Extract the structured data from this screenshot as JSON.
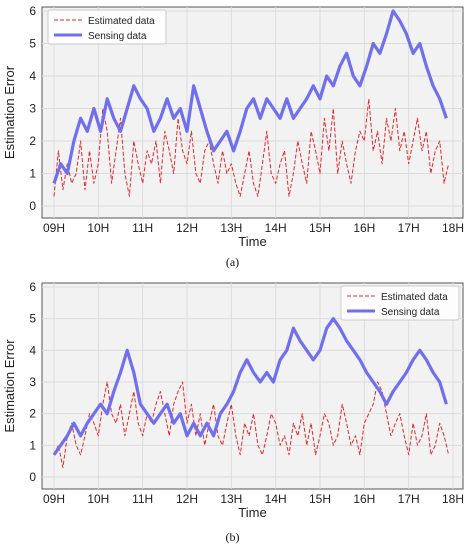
{
  "chart_data": [
    {
      "type": "line",
      "caption": "(a)",
      "xlabel": "Time",
      "ylabel": "Estimation Error",
      "categories": [
        "09H",
        "10H",
        "11H",
        "12H",
        "13H",
        "14H",
        "15H",
        "16H",
        "17H",
        "18H"
      ],
      "xlim": [
        9,
        18
      ],
      "ylim": [
        0,
        6
      ],
      "yticks": [
        0,
        1,
        2,
        3,
        4,
        5,
        6
      ],
      "grid": true,
      "legend": "top-left",
      "series": [
        {
          "name": "Estimated data",
          "style": "dashed",
          "color": "#e8262a",
          "x": [
            9.0,
            9.1,
            9.2,
            9.3,
            9.4,
            9.5,
            9.6,
            9.7,
            9.8,
            9.9,
            10.0,
            10.1,
            10.2,
            10.3,
            10.4,
            10.5,
            10.6,
            10.7,
            10.8,
            10.9,
            11.0,
            11.1,
            11.2,
            11.3,
            11.4,
            11.5,
            11.6,
            11.7,
            11.8,
            11.9,
            12.0,
            12.1,
            12.2,
            12.3,
            12.4,
            12.5,
            12.6,
            12.7,
            12.8,
            12.9,
            13.0,
            13.1,
            13.2,
            13.3,
            13.4,
            13.5,
            13.6,
            13.7,
            13.8,
            13.9,
            14.0,
            14.1,
            14.2,
            14.3,
            14.4,
            14.5,
            14.6,
            14.7,
            14.8,
            14.9,
            15.0,
            15.1,
            15.2,
            15.3,
            15.4,
            15.5,
            15.6,
            15.7,
            15.8,
            15.9,
            16.0,
            16.1,
            16.2,
            16.3,
            16.4,
            16.5,
            16.6,
            16.7,
            16.8,
            16.9,
            17.0,
            17.1,
            17.2,
            17.3,
            17.4,
            17.5,
            17.6,
            17.7,
            17.8,
            17.9
          ],
          "y": [
            0.3,
            1.7,
            0.5,
            1.3,
            0.7,
            1.0,
            2.0,
            0.5,
            1.7,
            0.7,
            1.3,
            3.0,
            2.3,
            0.7,
            1.7,
            2.7,
            1.0,
            0.3,
            2.0,
            1.3,
            0.7,
            1.7,
            1.3,
            2.0,
            0.7,
            2.3,
            1.7,
            1.0,
            2.7,
            1.7,
            1.3,
            2.3,
            1.0,
            0.7,
            1.7,
            2.0,
            1.3,
            0.7,
            1.7,
            1.0,
            1.3,
            0.7,
            0.3,
            1.0,
            1.7,
            0.7,
            0.3,
            1.3,
            2.3,
            1.0,
            0.7,
            1.3,
            1.7,
            0.3,
            1.0,
            2.0,
            1.3,
            0.7,
            2.3,
            1.7,
            1.0,
            2.7,
            1.7,
            3.0,
            1.0,
            2.0,
            1.3,
            0.7,
            1.7,
            2.3,
            2.0,
            3.3,
            1.7,
            2.3,
            1.3,
            2.7,
            2.0,
            3.0,
            1.7,
            2.3,
            1.3,
            2.0,
            2.7,
            1.7,
            2.3,
            1.0,
            1.7,
            2.0,
            0.7,
            1.3
          ]
        },
        {
          "name": "Sensing data",
          "style": "solid",
          "color": "#7070ee",
          "x": [
            9.0,
            9.15,
            9.3,
            9.45,
            9.6,
            9.75,
            9.9,
            10.05,
            10.2,
            10.35,
            10.5,
            10.65,
            10.8,
            10.95,
            11.1,
            11.25,
            11.4,
            11.55,
            11.7,
            11.85,
            12.0,
            12.15,
            12.3,
            12.45,
            12.6,
            12.75,
            12.9,
            13.05,
            13.2,
            13.35,
            13.5,
            13.65,
            13.8,
            13.95,
            14.1,
            14.25,
            14.4,
            14.55,
            14.7,
            14.85,
            15.0,
            15.15,
            15.3,
            15.45,
            15.6,
            15.75,
            15.9,
            16.05,
            16.2,
            16.35,
            16.5,
            16.65,
            16.8,
            16.95,
            17.1,
            17.25,
            17.4,
            17.55,
            17.7,
            17.85
          ],
          "y": [
            0.7,
            1.3,
            1.0,
            2.0,
            2.7,
            2.3,
            3.0,
            2.3,
            3.3,
            2.7,
            2.3,
            3.0,
            3.7,
            3.3,
            3.0,
            2.3,
            2.7,
            3.3,
            2.7,
            3.0,
            2.3,
            3.7,
            3.0,
            2.3,
            1.7,
            2.0,
            2.3,
            1.7,
            2.3,
            3.0,
            3.3,
            2.7,
            3.3,
            3.0,
            2.7,
            3.3,
            2.7,
            3.0,
            3.3,
            3.7,
            3.3,
            4.0,
            3.7,
            4.3,
            4.7,
            4.0,
            3.7,
            4.3,
            5.0,
            4.7,
            5.3,
            6.0,
            5.7,
            5.3,
            4.7,
            5.0,
            4.3,
            3.7,
            3.3,
            2.7
          ]
        }
      ]
    },
    {
      "type": "line",
      "caption": "(b)",
      "xlabel": "Time",
      "ylabel": "Estimation Error",
      "categories": [
        "09H",
        "10H",
        "11H",
        "12H",
        "13H",
        "14H",
        "15H",
        "16H",
        "17H",
        "18H"
      ],
      "xlim": [
        9,
        18
      ],
      "ylim": [
        0,
        6
      ],
      "yticks": [
        0,
        1,
        2,
        3,
        4,
        5,
        6
      ],
      "grid": true,
      "legend": "top-right",
      "series": [
        {
          "name": "Estimated data",
          "style": "dashed",
          "color": "#e8262a",
          "x": [
            9.0,
            9.1,
            9.2,
            9.3,
            9.4,
            9.5,
            9.6,
            9.7,
            9.8,
            9.9,
            10.0,
            10.1,
            10.2,
            10.3,
            10.4,
            10.5,
            10.6,
            10.7,
            10.8,
            10.9,
            11.0,
            11.1,
            11.2,
            11.3,
            11.4,
            11.5,
            11.6,
            11.7,
            11.8,
            11.9,
            12.0,
            12.1,
            12.2,
            12.3,
            12.4,
            12.5,
            12.6,
            12.7,
            12.8,
            12.9,
            13.0,
            13.1,
            13.2,
            13.3,
            13.4,
            13.5,
            13.6,
            13.7,
            13.8,
            13.9,
            14.0,
            14.1,
            14.2,
            14.3,
            14.4,
            14.5,
            14.6,
            14.7,
            14.8,
            14.9,
            15.0,
            15.1,
            15.2,
            15.3,
            15.4,
            15.5,
            15.6,
            15.7,
            15.8,
            15.9,
            16.0,
            16.1,
            16.2,
            16.3,
            16.4,
            16.5,
            16.6,
            16.7,
            16.8,
            16.9,
            17.0,
            17.1,
            17.2,
            17.3,
            17.4,
            17.5,
            17.6,
            17.7,
            17.8,
            17.9
          ],
          "y": [
            0.7,
            1.0,
            0.3,
            1.3,
            1.7,
            1.0,
            0.7,
            1.3,
            2.0,
            1.7,
            1.3,
            2.3,
            3.0,
            2.0,
            1.7,
            2.3,
            1.3,
            2.0,
            2.7,
            1.7,
            1.3,
            2.0,
            1.7,
            2.3,
            2.7,
            2.0,
            1.3,
            2.3,
            2.7,
            3.0,
            1.7,
            2.3,
            1.3,
            2.0,
            1.0,
            1.7,
            2.3,
            1.3,
            1.0,
            1.7,
            2.3,
            1.3,
            0.7,
            1.7,
            1.3,
            2.0,
            1.0,
            0.7,
            1.3,
            2.0,
            1.7,
            1.0,
            1.3,
            0.7,
            1.7,
            1.3,
            2.0,
            1.0,
            1.7,
            0.7,
            1.3,
            2.0,
            1.7,
            1.0,
            1.3,
            2.3,
            1.7,
            1.0,
            1.3,
            0.7,
            1.7,
            2.0,
            2.3,
            3.0,
            2.7,
            2.0,
            1.3,
            1.7,
            2.0,
            1.3,
            0.7,
            1.7,
            1.0,
            1.3,
            2.0,
            0.7,
            1.0,
            1.7,
            1.3,
            0.7
          ]
        },
        {
          "name": "Sensing data",
          "style": "solid",
          "color": "#7070ee",
          "x": [
            9.0,
            9.15,
            9.3,
            9.45,
            9.6,
            9.75,
            9.9,
            10.05,
            10.2,
            10.35,
            10.5,
            10.65,
            10.8,
            10.95,
            11.1,
            11.25,
            11.4,
            11.55,
            11.7,
            11.85,
            12.0,
            12.15,
            12.3,
            12.45,
            12.6,
            12.75,
            12.9,
            13.05,
            13.2,
            13.35,
            13.5,
            13.65,
            13.8,
            13.95,
            14.1,
            14.25,
            14.4,
            14.55,
            14.7,
            14.85,
            15.0,
            15.15,
            15.3,
            15.45,
            15.6,
            15.75,
            15.9,
            16.05,
            16.2,
            16.35,
            16.5,
            16.65,
            16.8,
            16.95,
            17.1,
            17.25,
            17.4,
            17.55,
            17.7,
            17.85
          ],
          "y": [
            0.7,
            1.0,
            1.3,
            1.7,
            1.3,
            1.7,
            2.0,
            2.3,
            2.0,
            2.7,
            3.3,
            4.0,
            3.3,
            2.3,
            2.0,
            1.7,
            2.0,
            2.3,
            1.7,
            2.0,
            1.3,
            1.7,
            1.3,
            1.7,
            1.3,
            2.0,
            2.3,
            2.7,
            3.3,
            3.7,
            3.3,
            3.0,
            3.3,
            3.0,
            3.7,
            4.0,
            4.7,
            4.3,
            4.0,
            3.7,
            4.0,
            4.7,
            5.0,
            4.7,
            4.3,
            4.0,
            3.7,
            3.3,
            3.0,
            2.7,
            2.3,
            2.7,
            3.0,
            3.3,
            3.7,
            4.0,
            3.7,
            3.3,
            3.0,
            2.3
          ]
        }
      ]
    }
  ]
}
